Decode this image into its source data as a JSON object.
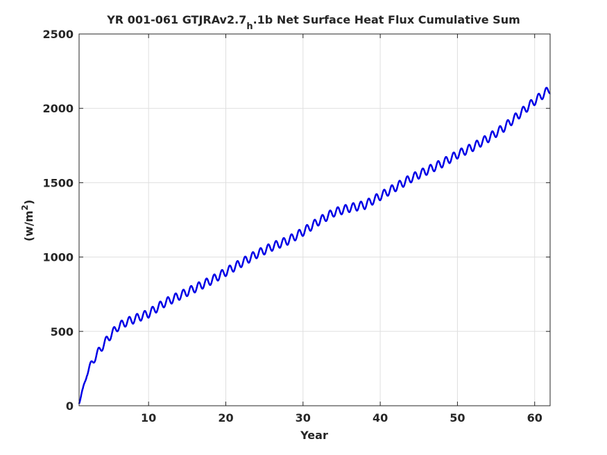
{
  "chart_data": {
    "type": "line",
    "title_main": "YR 001-061 GTJRAv2.7",
    "title_sub": "h",
    "title_rest": ".1b Net Surface Heat Flux  Cumulative Sum",
    "xlabel": "Year",
    "ylabel_base": "(w/m",
    "ylabel_sup": "2",
    "ylabel_close": ")",
    "xlim": [
      1,
      62
    ],
    "ylim": [
      0,
      2500
    ],
    "xticks": [
      10,
      20,
      30,
      40,
      50,
      60
    ],
    "yticks": [
      0,
      500,
      1000,
      1500,
      2000,
      2500
    ],
    "grid": true,
    "line_color": "#0000e6",
    "series": [
      {
        "x": [
          1,
          1.5,
          2,
          3,
          4,
          5,
          6,
          7,
          8,
          10,
          12,
          14,
          16,
          18,
          20,
          22,
          24,
          26,
          28,
          30,
          32,
          34,
          36,
          38,
          40,
          42,
          44,
          46,
          48,
          50,
          52,
          54,
          56,
          58,
          60,
          62
        ],
        "y": [
          30,
          100,
          220,
          320,
          400,
          470,
          530,
          560,
          580,
          620,
          690,
          740,
          790,
          840,
          900,
          960,
          1020,
          1070,
          1110,
          1170,
          1240,
          1300,
          1330,
          1350,
          1410,
          1470,
          1530,
          1580,
          1630,
          1690,
          1740,
          1800,
          1870,
          1960,
          2050,
          2130
        ]
      }
    ],
    "seasonal_amplitude": 28
  }
}
